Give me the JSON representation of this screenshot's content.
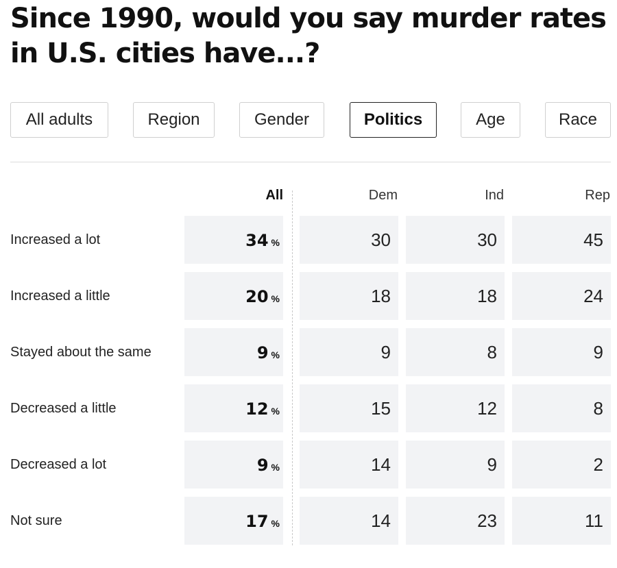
{
  "title": "Since 1990, would you say murder rates in U.S. cities have...?",
  "tabs": [
    {
      "label": "All adults",
      "active": false
    },
    {
      "label": "Region",
      "active": false
    },
    {
      "label": "Gender",
      "active": false
    },
    {
      "label": "Politics",
      "active": true
    },
    {
      "label": "Age",
      "active": false
    },
    {
      "label": "Race",
      "active": false
    }
  ],
  "table": {
    "columns": [
      "All",
      "Dem",
      "Ind",
      "Rep"
    ],
    "percent_symbol": "%",
    "rows": [
      {
        "label": "Increased a lot",
        "all": "34",
        "values": [
          "30",
          "30",
          "45"
        ]
      },
      {
        "label": "Increased a little",
        "all": "20",
        "values": [
          "18",
          "18",
          "24"
        ]
      },
      {
        "label": "Stayed about the same",
        "all": "9",
        "values": [
          "9",
          "8",
          "9"
        ]
      },
      {
        "label": "Decreased a little",
        "all": "12",
        "values": [
          "15",
          "12",
          "8"
        ]
      },
      {
        "label": "Decreased a lot",
        "all": "9",
        "values": [
          "14",
          "9",
          "2"
        ]
      },
      {
        "label": "Not sure",
        "all": "17",
        "values": [
          "14",
          "23",
          "11"
        ]
      }
    ]
  },
  "colors": {
    "cell_background": "#f2f3f5",
    "active_tab_border": "#222222",
    "tab_border": "#cfcfcf"
  }
}
